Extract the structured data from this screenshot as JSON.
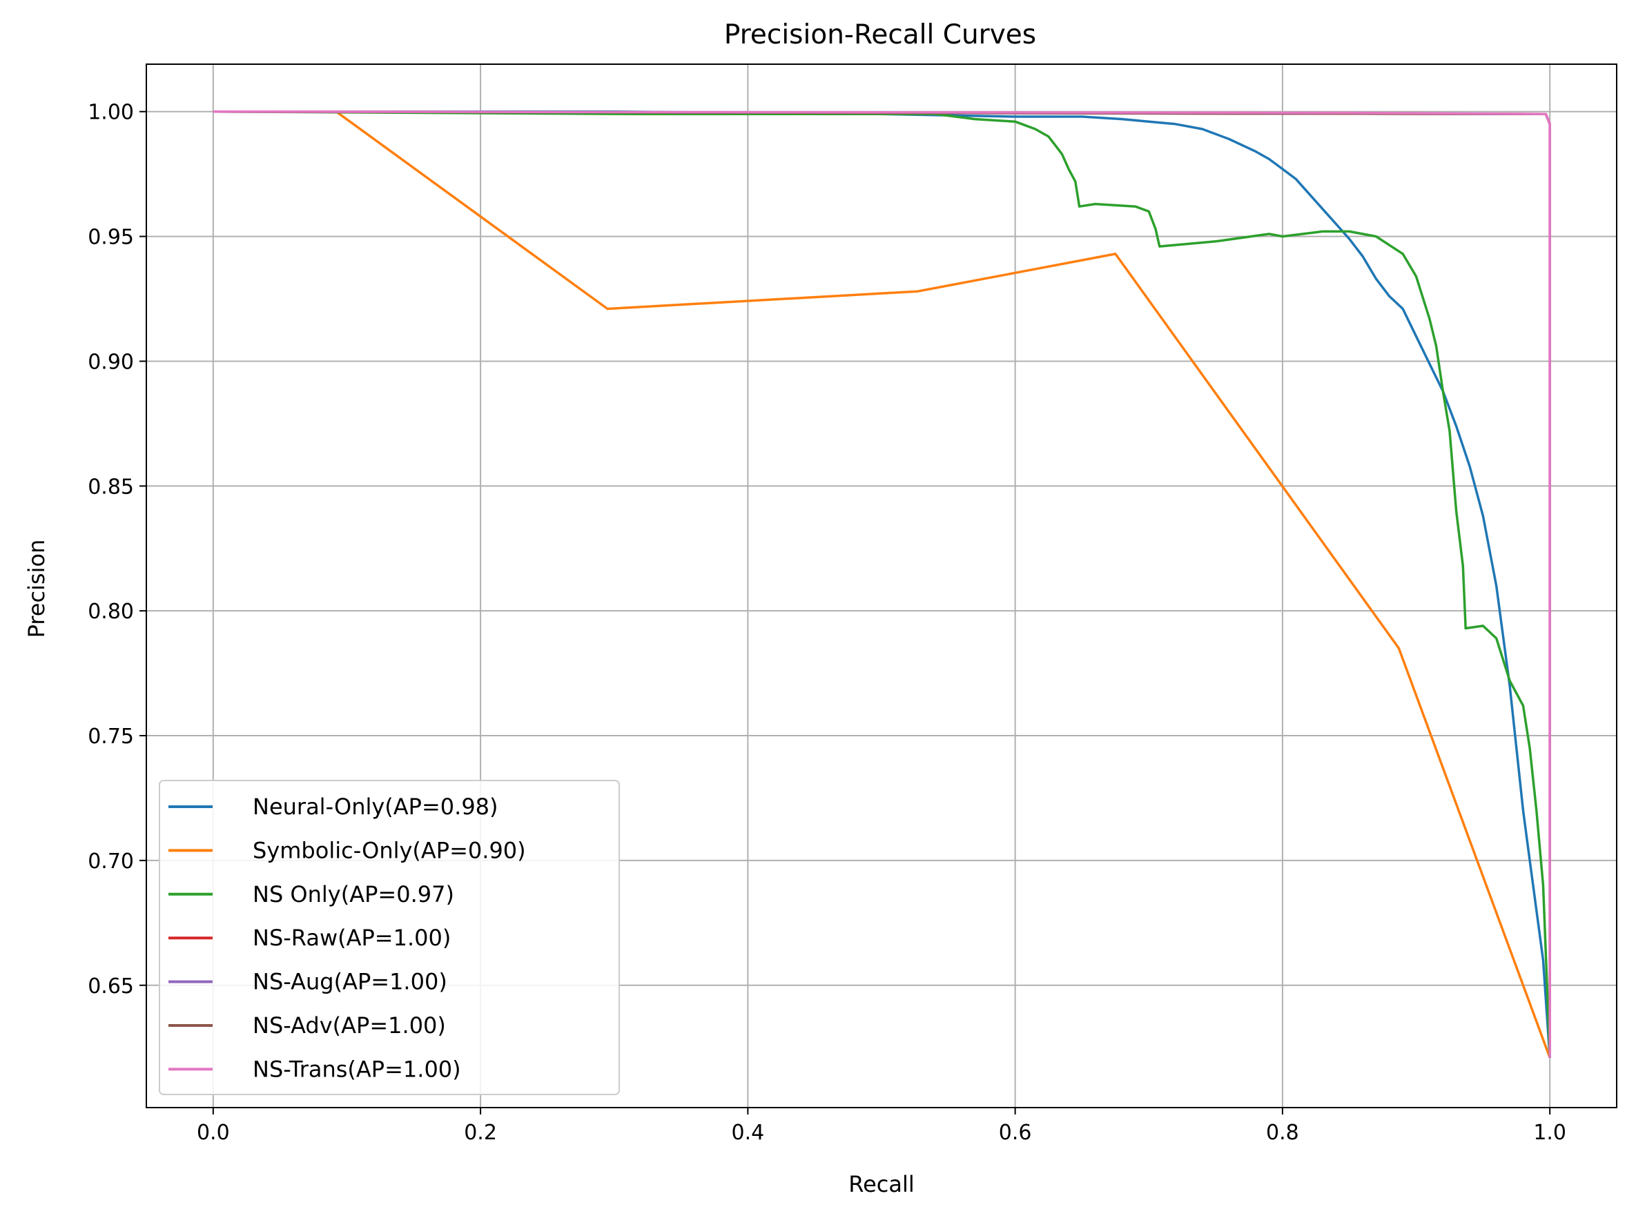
{
  "chart_data": {
    "type": "line",
    "title": "Precision-Recall Curves",
    "xlabel": "Recall",
    "ylabel": "Precision",
    "xlim": [
      -0.05,
      1.05
    ],
    "ylim": [
      0.601,
      1.019
    ],
    "xticks": [
      0.0,
      0.2,
      0.4,
      0.6,
      0.8,
      1.0
    ],
    "xtick_labels": [
      "0.0",
      "0.2",
      "0.4",
      "0.6",
      "0.8",
      "1.0"
    ],
    "yticks": [
      0.65,
      0.7,
      0.75,
      0.8,
      0.85,
      0.9,
      0.95,
      1.0
    ],
    "ytick_labels": [
      "0.65",
      "0.70",
      "0.75",
      "0.80",
      "0.85",
      "0.90",
      "0.95",
      "1.00"
    ],
    "grid": true,
    "legend_position": "lower-left",
    "series": [
      {
        "name": "Neural-Only(AP=0.98)",
        "color": "#1f77b4",
        "points": [
          [
            0.0,
            1.0
          ],
          [
            0.3,
            1.0
          ],
          [
            0.5,
            0.999
          ],
          [
            0.6,
            0.998
          ],
          [
            0.65,
            0.998
          ],
          [
            0.68,
            0.997
          ],
          [
            0.7,
            0.996
          ],
          [
            0.72,
            0.995
          ],
          [
            0.74,
            0.993
          ],
          [
            0.76,
            0.989
          ],
          [
            0.78,
            0.984
          ],
          [
            0.79,
            0.981
          ],
          [
            0.8,
            0.977
          ],
          [
            0.81,
            0.973
          ],
          [
            0.82,
            0.967
          ],
          [
            0.83,
            0.961
          ],
          [
            0.84,
            0.955
          ],
          [
            0.85,
            0.949
          ],
          [
            0.86,
            0.942
          ],
          [
            0.87,
            0.933
          ],
          [
            0.88,
            0.926
          ],
          [
            0.89,
            0.921
          ],
          [
            0.9,
            0.91
          ],
          [
            0.91,
            0.899
          ],
          [
            0.92,
            0.888
          ],
          [
            0.93,
            0.874
          ],
          [
            0.94,
            0.858
          ],
          [
            0.95,
            0.838
          ],
          [
            0.96,
            0.81
          ],
          [
            0.965,
            0.79
          ],
          [
            0.97,
            0.77
          ],
          [
            0.975,
            0.745
          ],
          [
            0.98,
            0.72
          ],
          [
            0.985,
            0.7
          ],
          [
            0.99,
            0.68
          ],
          [
            0.995,
            0.66
          ],
          [
            1.0,
            0.621
          ]
        ]
      },
      {
        "name": "Symbolic-Only(AP=0.90)",
        "color": "#ff7f0e",
        "points": [
          [
            0.0,
            1.0
          ],
          [
            0.092,
            1.0
          ],
          [
            0.295,
            0.921
          ],
          [
            0.527,
            0.928
          ],
          [
            0.675,
            0.943
          ],
          [
            0.887,
            0.785
          ],
          [
            1.0,
            0.621
          ]
        ]
      },
      {
        "name": "NS Only(AP=0.97)",
        "color": "#2ca02c",
        "points": [
          [
            0.0,
            1.0
          ],
          [
            0.32,
            0.999
          ],
          [
            0.48,
            0.999
          ],
          [
            0.54,
            0.999
          ],
          [
            0.57,
            0.997
          ],
          [
            0.6,
            0.996
          ],
          [
            0.615,
            0.993
          ],
          [
            0.625,
            0.99
          ],
          [
            0.635,
            0.983
          ],
          [
            0.64,
            0.977
          ],
          [
            0.645,
            0.972
          ],
          [
            0.648,
            0.962
          ],
          [
            0.66,
            0.963
          ],
          [
            0.69,
            0.962
          ],
          [
            0.7,
            0.96
          ],
          [
            0.705,
            0.953
          ],
          [
            0.708,
            0.946
          ],
          [
            0.75,
            0.948
          ],
          [
            0.79,
            0.951
          ],
          [
            0.8,
            0.95
          ],
          [
            0.83,
            0.952
          ],
          [
            0.85,
            0.952
          ],
          [
            0.87,
            0.95
          ],
          [
            0.89,
            0.943
          ],
          [
            0.9,
            0.934
          ],
          [
            0.91,
            0.917
          ],
          [
            0.915,
            0.906
          ],
          [
            0.92,
            0.888
          ],
          [
            0.925,
            0.872
          ],
          [
            0.93,
            0.84
          ],
          [
            0.935,
            0.818
          ],
          [
            0.937,
            0.793
          ],
          [
            0.95,
            0.794
          ],
          [
            0.96,
            0.789
          ],
          [
            0.97,
            0.772
          ],
          [
            0.98,
            0.762
          ],
          [
            0.985,
            0.745
          ],
          [
            0.99,
            0.72
          ],
          [
            0.995,
            0.69
          ],
          [
            1.0,
            0.621
          ]
        ]
      },
      {
        "name": "NS-Raw(AP=1.00)",
        "color": "#d62728",
        "points": [
          [
            0.0,
            1.0
          ],
          [
            0.997,
            0.999
          ],
          [
            1.0,
            0.995
          ],
          [
            1.0,
            0.621
          ]
        ]
      },
      {
        "name": "NS-Aug(AP=1.00)",
        "color": "#9467bd",
        "points": [
          [
            0.0,
            1.0
          ],
          [
            0.997,
            0.999
          ],
          [
            1.0,
            0.995
          ],
          [
            1.0,
            0.621
          ]
        ]
      },
      {
        "name": "NS-Adv(AP=1.00)",
        "color": "#8c564b",
        "points": [
          [
            0.0,
            1.0
          ],
          [
            0.997,
            0.999
          ],
          [
            1.0,
            0.995
          ],
          [
            1.0,
            0.621
          ]
        ]
      },
      {
        "name": "NS-Trans(AP=1.00)",
        "color": "#e377c2",
        "points": [
          [
            0.0,
            1.0
          ],
          [
            0.85,
            0.9995
          ],
          [
            0.997,
            0.999
          ],
          [
            1.0,
            0.995
          ],
          [
            1.0,
            0.621
          ]
        ]
      }
    ]
  }
}
